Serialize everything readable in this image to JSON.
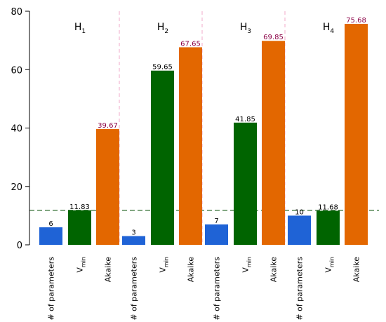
{
  "chart_data": {
    "type": "bar",
    "ylim": [
      0,
      80
    ],
    "yticks": [
      0,
      20,
      40,
      60,
      80
    ],
    "reference_line": {
      "y": 11.83,
      "color": "#2e6b2e",
      "style": "dashed"
    },
    "colors": {
      "params": "#1f63d6",
      "vmin": "#006400",
      "akaike": "#e36700",
      "label_params": "#000000",
      "label_vmin": "#000000",
      "label_akaike": "#8b0045",
      "group_separator": "#f0a8c8"
    },
    "groups": [
      {
        "label": "H",
        "sub": "1",
        "bars": [
          {
            "category": "# of parameters",
            "series": "params",
            "value": 6,
            "value_label": "6"
          },
          {
            "category": "V",
            "cat_sub": "min",
            "series": "vmin",
            "value": 11.83,
            "value_label": "11.83"
          },
          {
            "category": "Akaike",
            "series": "akaike",
            "value": 39.67,
            "value_label": "39.67"
          }
        ]
      },
      {
        "label": "H",
        "sub": "2",
        "bars": [
          {
            "category": "# of parameters",
            "series": "params",
            "value": 3,
            "value_label": "3"
          },
          {
            "category": "V",
            "cat_sub": "min",
            "series": "vmin",
            "value": 59.65,
            "value_label": "59.65"
          },
          {
            "category": "Akaike",
            "series": "akaike",
            "value": 67.65,
            "value_label": "67.65"
          }
        ]
      },
      {
        "label": "H",
        "sub": "3",
        "bars": [
          {
            "category": "# of parameters",
            "series": "params",
            "value": 7,
            "value_label": "7"
          },
          {
            "category": "V",
            "cat_sub": "min",
            "series": "vmin",
            "value": 41.85,
            "value_label": "41.85"
          },
          {
            "category": "Akaike",
            "series": "akaike",
            "value": 69.85,
            "value_label": "69.85"
          }
        ]
      },
      {
        "label": "H",
        "sub": "4",
        "bars": [
          {
            "category": "# of parameters",
            "series": "params",
            "value": 10,
            "value_label": "10"
          },
          {
            "category": "V",
            "cat_sub": "min",
            "series": "vmin",
            "value": 11.68,
            "value_label": "11.68"
          },
          {
            "category": "Akaike",
            "series": "akaike",
            "value": 75.68,
            "value_label": "75.68"
          }
        ]
      }
    ]
  }
}
